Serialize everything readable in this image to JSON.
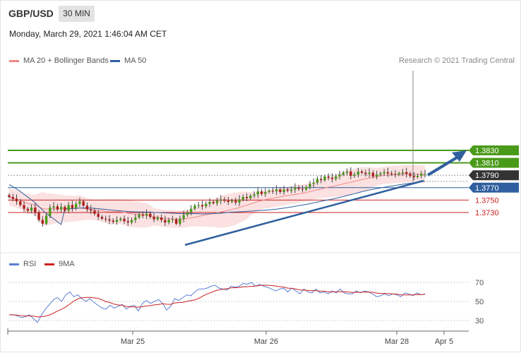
{
  "header": {
    "pair": "GBP/USD",
    "timeframe": "30 MIN"
  },
  "date_line": "Monday, March 29, 2021 1:46:04 AM CET",
  "legend": {
    "ma20": {
      "label": "MA 20 + Bollinger Bands",
      "color": "#ee8888"
    },
    "ma50": {
      "label": "MA 50",
      "color": "#2f5f9e"
    },
    "credit": "Research © 2021 Trading Central"
  },
  "rsi_legend": {
    "rsi": {
      "label": "RSI",
      "color": "#5b7fd6"
    },
    "ma9": {
      "label": "9MA",
      "color": "#cc2222"
    }
  },
  "chart_data": [
    {
      "type": "candlestick",
      "instrument": "GBP/USD",
      "timeframe": "30 MIN",
      "x_ticks": [
        "Mar 25",
        "Mar 26",
        "Mar 28",
        "Apr 5"
      ],
      "price_levels": [
        {
          "value": "1.3830",
          "style": "resistance",
          "color": "#4a9a1a"
        },
        {
          "value": "1.3810",
          "style": "resistance",
          "color": "#4a9a1a"
        },
        {
          "value": "1.3790",
          "style": "current",
          "color": "#333333"
        },
        {
          "value": "1.3770",
          "style": "support",
          "color": "#2f5f9e"
        },
        {
          "value": "1.3750",
          "style": "support",
          "color": "#cc2222"
        },
        {
          "value": "1.3730",
          "style": "support",
          "color": "#cc2222"
        }
      ],
      "close": [
        1.3755,
        1.3752,
        1.3748,
        1.3742,
        1.3736,
        1.3733,
        1.3738,
        1.373,
        1.3718,
        1.3712,
        1.3725,
        1.3738,
        1.374,
        1.3735,
        1.3739,
        1.3733,
        1.3742,
        1.3737,
        1.3744,
        1.3748,
        1.3741,
        1.3735,
        1.3733,
        1.3728,
        1.3723,
        1.372,
        1.3719,
        1.3717,
        1.3715,
        1.3718,
        1.372,
        1.3716,
        1.3714,
        1.3718,
        1.3722,
        1.3727,
        1.3725,
        1.3728,
        1.3723,
        1.3719,
        1.3722,
        1.3718,
        1.3714,
        1.3718,
        1.3719,
        1.3712,
        1.372,
        1.3726,
        1.373,
        1.3736,
        1.3741,
        1.3742,
        1.374,
        1.3744,
        1.3747,
        1.3745,
        1.3749,
        1.3751,
        1.3749,
        1.3747,
        1.3749,
        1.3746,
        1.3751,
        1.3755,
        1.3753,
        1.3757,
        1.3759,
        1.3764,
        1.376,
        1.3763,
        1.3765,
        1.3764,
        1.3767,
        1.3763,
        1.3767,
        1.3765,
        1.3767,
        1.377,
        1.3768,
        1.3767,
        1.3771,
        1.3776,
        1.3778,
        1.3784,
        1.3782,
        1.3788,
        1.3786,
        1.3784,
        1.3788,
        1.3791,
        1.3794,
        1.3796,
        1.3789,
        1.3791,
        1.3796,
        1.3794,
        1.3792,
        1.3794,
        1.3788,
        1.3791,
        1.3793,
        1.3795,
        1.3793,
        1.3792,
        1.3791,
        1.3793,
        1.3795,
        1.3792,
        1.3789,
        1.3787,
        1.3789,
        1.3792,
        1.3792
      ],
      "rsi": [
        36,
        36,
        35,
        33,
        34,
        36,
        32,
        28,
        36,
        42,
        47,
        52,
        54,
        50,
        57,
        60,
        55,
        57,
        53,
        50,
        53,
        49,
        46,
        43,
        42,
        46,
        43,
        45,
        47,
        42,
        45,
        46,
        40,
        48,
        51,
        48,
        50,
        52,
        48,
        41,
        45,
        53,
        51,
        54,
        57,
        56,
        60,
        63,
        63,
        64,
        66,
        67,
        64,
        63,
        62,
        66,
        65,
        66,
        69,
        68,
        70,
        66,
        68,
        66,
        65,
        63,
        61,
        63,
        64,
        60,
        64,
        61,
        58,
        63,
        60,
        59,
        63,
        59,
        60,
        58,
        61,
        59,
        63,
        59,
        58,
        58,
        61,
        59,
        61,
        60,
        58,
        55,
        56,
        58,
        56,
        58,
        57,
        55,
        59,
        58,
        56,
        59,
        57,
        58
      ],
      "rsi_levels": [
        70,
        50,
        30
      ]
    }
  ]
}
